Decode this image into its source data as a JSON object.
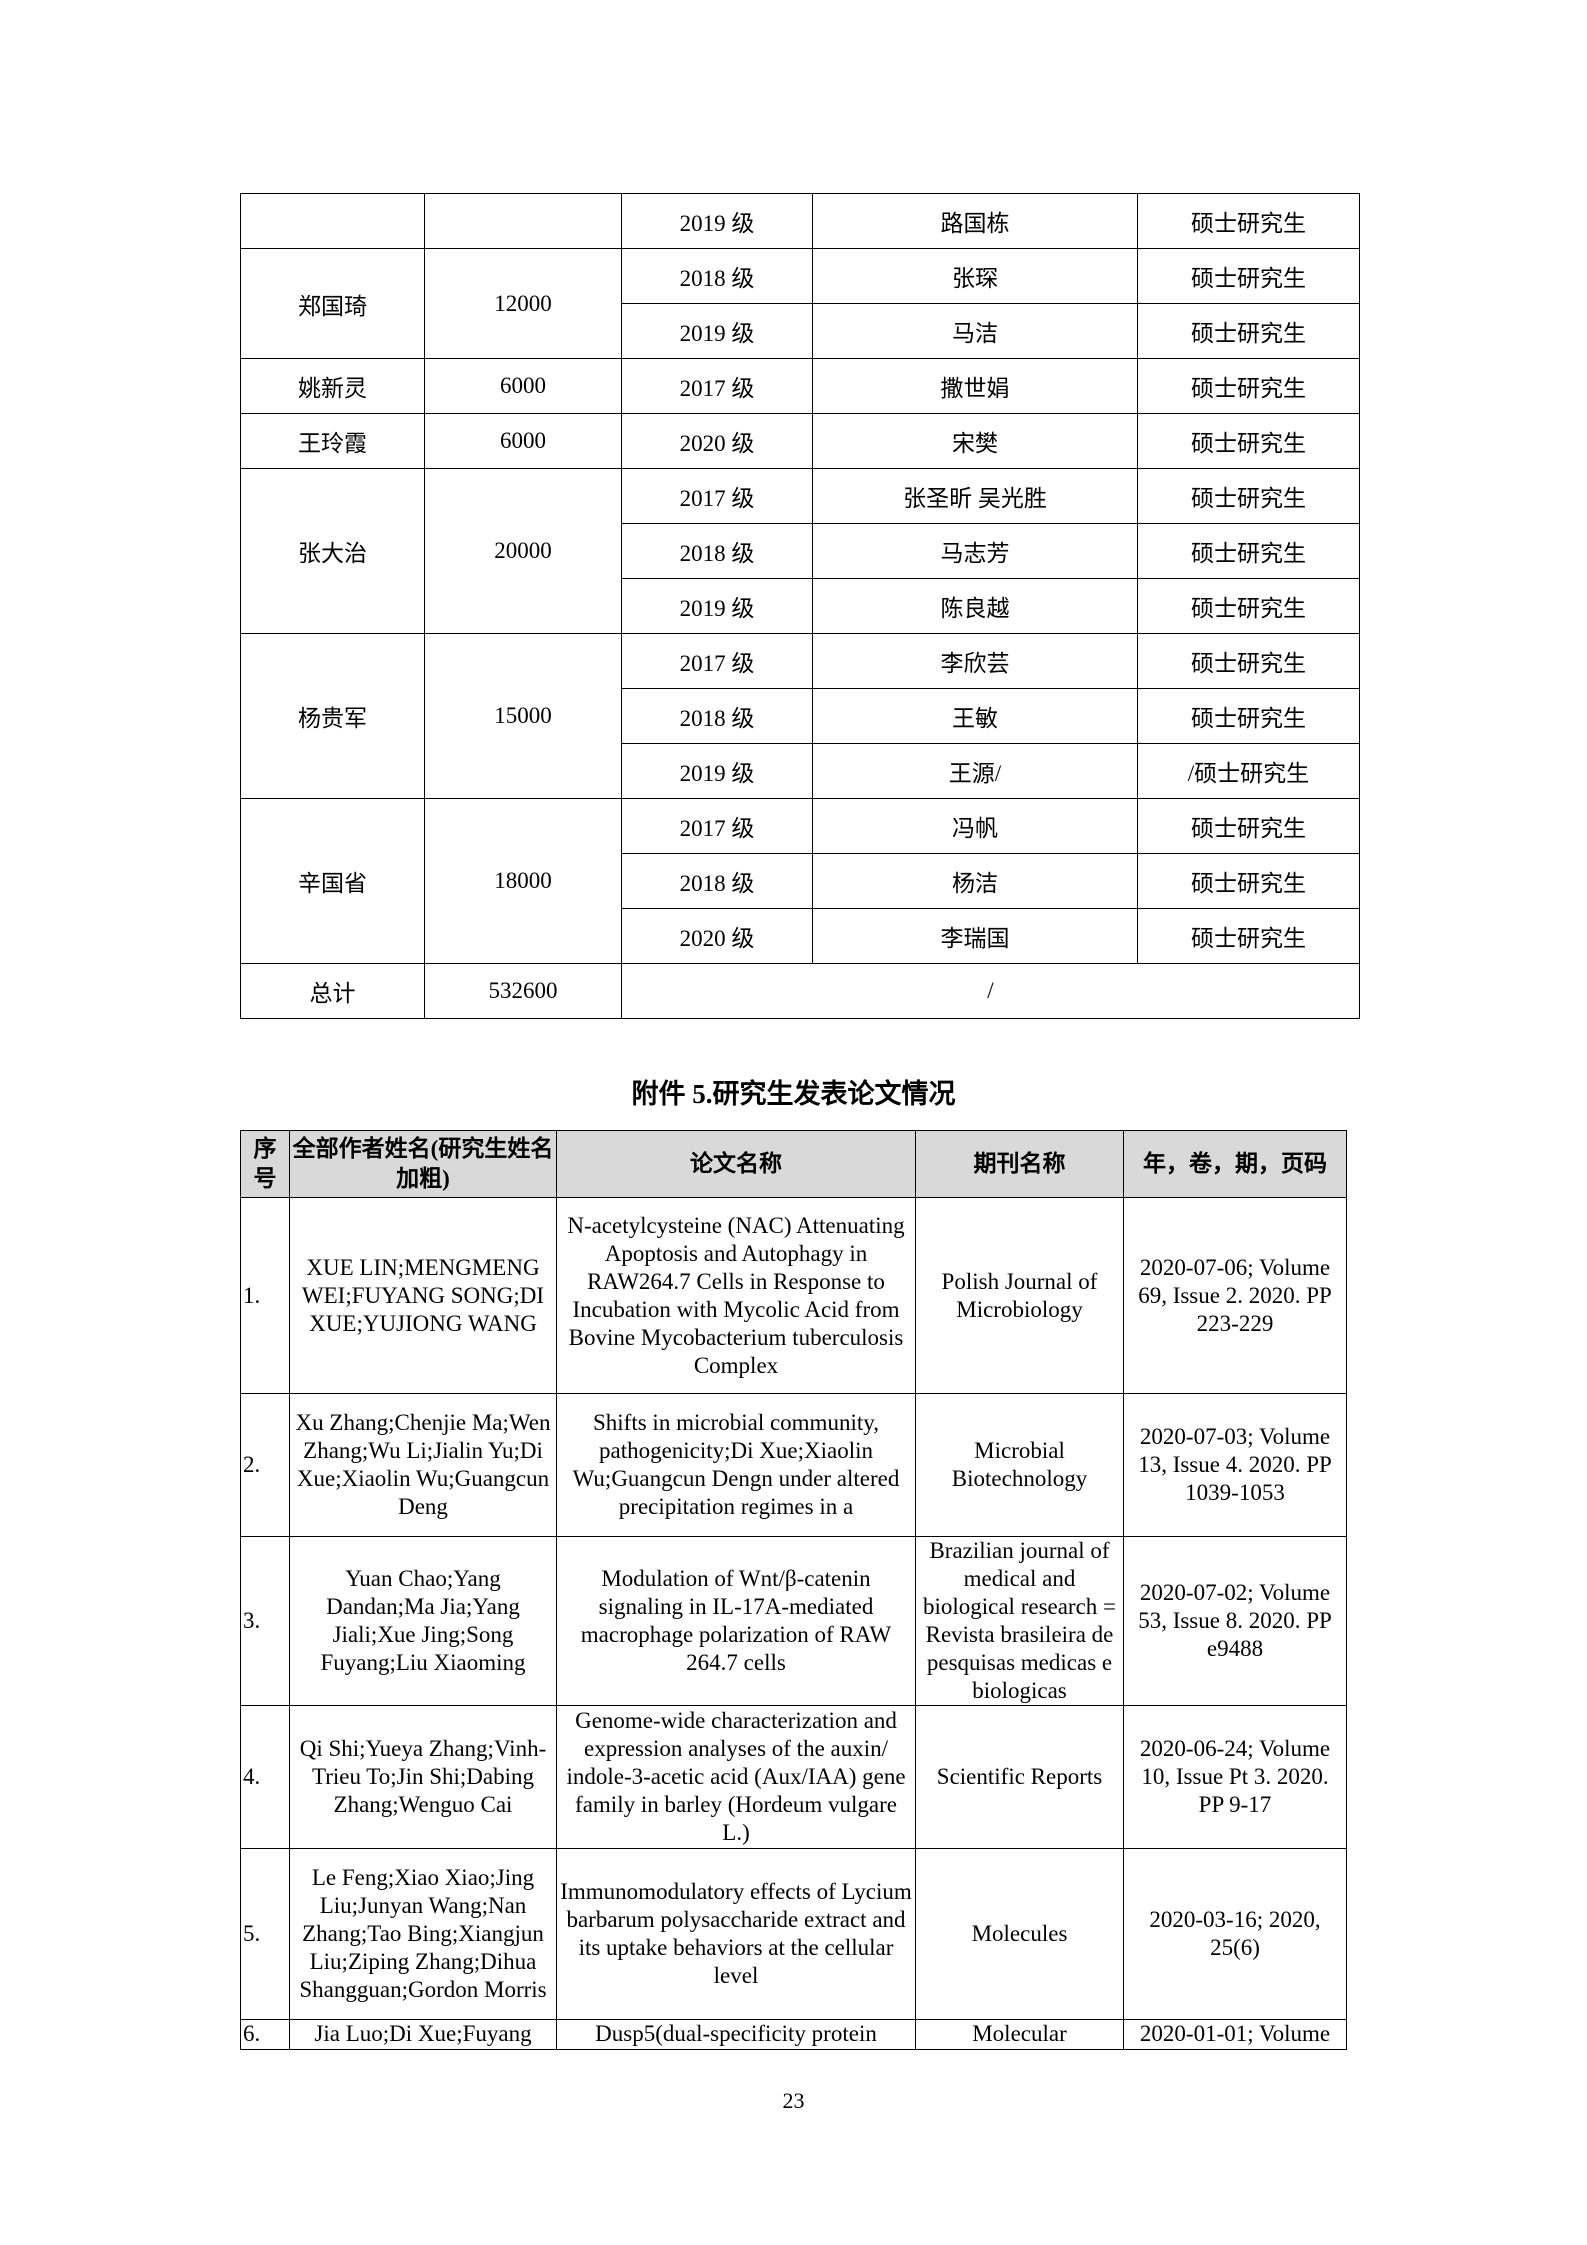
{
  "table1": {
    "rows": [
      {
        "teacher": "",
        "amount": "",
        "entries": [
          {
            "grade": "2019 级",
            "student": "路国栋",
            "type": "硕士研究生"
          }
        ]
      },
      {
        "teacher": "郑国琦",
        "amount": "12000",
        "entries": [
          {
            "grade": "2018 级",
            "student": "张琛",
            "type": "硕士研究生"
          },
          {
            "grade": "2019 级",
            "student": "马洁",
            "type": "硕士研究生"
          }
        ]
      },
      {
        "teacher": "姚新灵",
        "amount": "6000",
        "entries": [
          {
            "grade": "2017 级",
            "student": "撒世娟",
            "type": "硕士研究生"
          }
        ]
      },
      {
        "teacher": "王玲霞",
        "amount": "6000",
        "entries": [
          {
            "grade": "2020 级",
            "student": "宋樊",
            "type": "硕士研究生"
          }
        ]
      },
      {
        "teacher": "张大治",
        "amount": "20000",
        "entries": [
          {
            "grade": "2017 级",
            "student": "张圣昕  吴光胜",
            "type": "硕士研究生"
          },
          {
            "grade": "2018 级",
            "student": "马志芳",
            "type": "硕士研究生"
          },
          {
            "grade": "2019 级",
            "student": "陈良越",
            "type": "硕士研究生"
          }
        ]
      },
      {
        "teacher": "杨贵军",
        "amount": "15000",
        "entries": [
          {
            "grade": "2017 级",
            "student": "李欣芸",
            "type": "硕士研究生"
          },
          {
            "grade": "2018 级",
            "student": "王敏",
            "type": "硕士研究生"
          },
          {
            "grade": "2019 级",
            "student": "王源/",
            "type": "/硕士研究生"
          }
        ]
      },
      {
        "teacher": "辛国省",
        "amount": "18000",
        "entries": [
          {
            "grade": "2017 级",
            "student": "冯帆",
            "type": "硕士研究生"
          },
          {
            "grade": "2018 级",
            "student": "杨洁",
            "type": "硕士研究生"
          },
          {
            "grade": "2020 级",
            "student": "李瑞国",
            "type": "硕士研究生"
          }
        ]
      }
    ],
    "total": {
      "label": "总计",
      "amount": "532600",
      "rest": "/"
    }
  },
  "section_title": "附件 5.研究生发表论文情况",
  "table2": {
    "headers": [
      "序号",
      "全部作者姓名(研究生姓名加粗)",
      "论文名称",
      "期刊名称",
      "年，卷，期，页码"
    ],
    "rows": [
      {
        "no": "1.",
        "authors": "XUE LIN;MENGMENG WEI;FUYANG SONG;DI XUE;YUJIONG WANG",
        "title": "N-acetylcysteine (NAC) Attenuating Apoptosis and Autophagy in RAW264.7 Cells in Response to Incubation with Mycolic Acid from Bovine Mycobacterium tuberculosis Complex",
        "journal": "Polish Journal of Microbiology",
        "citation": "2020-07-06; Volume 69, Issue 2. 2020. PP 223-229"
      },
      {
        "no": "2.",
        "authors": "Xu Zhang;Chenjie Ma;Wen Zhang;Wu Li;Jialin Yu;Di Xue;Xiaolin Wu;Guangcun Deng",
        "title": "Shifts in microbial community, pathogenicity;Di Xue;Xiaolin Wu;Guangcun Dengn under altered precipitation regimes in a",
        "journal": "Microbial Biotechnology",
        "citation": "2020-07-03; Volume 13, Issue 4. 2020. PP 1039-1053"
      },
      {
        "no": "3.",
        "authors": "Yuan Chao;Yang Dandan;Ma Jia;Yang Jiali;Xue Jing;Song Fuyang;Liu Xiaoming",
        "title": "Modulation of Wnt/β-catenin signaling in IL-17A-mediated macrophage polarization of RAW 264.7 cells",
        "journal": "Brazilian journal of medical and biological research = Revista brasileira de pesquisas medicas e biologicas",
        "citation": "2020-07-02;  Volume 53, Issue 8. 2020. PP e9488"
      },
      {
        "no": "4.",
        "authors": "Qi Shi;Yueya Zhang;Vinh-Trieu To;Jin Shi;Dabing Zhang;Wenguo Cai",
        "title": "Genome-wide characterization and expression analyses of the auxin/ indole-3-acetic acid (Aux/IAA) gene family in barley (Hordeum vulgare L.)",
        "journal": "Scientific Reports",
        "citation": "2020-06-24; Volume 10, Issue Pt 3. 2020. PP 9-17"
      },
      {
        "no": "5.",
        "authors": "Le Feng;Xiao Xiao;Jing Liu;Junyan Wang;Nan Zhang;Tao Bing;Xiangjun Liu;Ziping Zhang;Dihua Shangguan;Gordon Morris",
        "title": "Immunomodulatory effects of Lycium barbarum polysaccharide extract and its uptake behaviors at the cellular level",
        "journal": "Molecules",
        "citation": "2020-03-16; 2020, 25(6)"
      },
      {
        "no": "6.",
        "authors": "Jia Luo;Di Xue;Fuyang",
        "title": "Dusp5(dual-specificity protein",
        "journal": "Molecular",
        "citation": "2020-01-01; Volume"
      }
    ]
  },
  "page_number": "23"
}
